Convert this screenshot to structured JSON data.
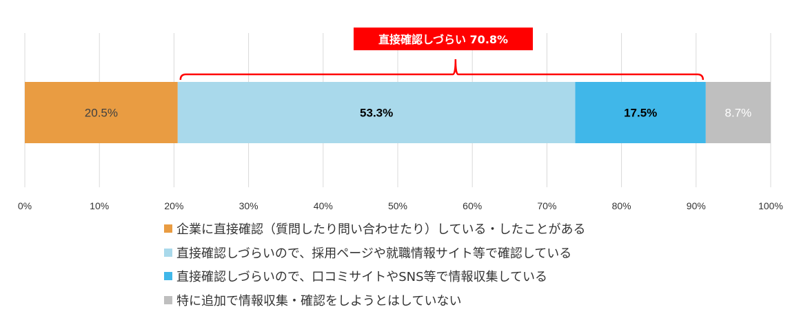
{
  "chart_data": {
    "type": "bar",
    "orientation": "horizontal",
    "stacked": true,
    "xlim": [
      0,
      100
    ],
    "x_ticks": [
      "0%",
      "10%",
      "20%",
      "30%",
      "40%",
      "50%",
      "60%",
      "70%",
      "80%",
      "90%",
      "100%"
    ],
    "grid": true,
    "legend_placement": "bottom",
    "series": [
      {
        "name": "企業に直接確認（質問したり問い合わせたり）している・したことがある",
        "value": 20.5,
        "label": "20.5%",
        "color": "#E99C42",
        "label_color": "#404040",
        "label_bold": false
      },
      {
        "name": "直接確認しづらいので、採用ページや就職情報サイト等で確認している",
        "value": 53.3,
        "label": "53.3%",
        "color": "#A9D9EB",
        "label_color": "#000000",
        "label_bold": true
      },
      {
        "name": "直接確認しづらいので、口コミサイトやSNS等で情報収集している",
        "value": 17.5,
        "label": "17.5%",
        "color": "#40B7E9",
        "label_color": "#000000",
        "label_bold": true
      },
      {
        "name": "特に追加で情報収集・確認をしようとはしていない",
        "value": 8.7,
        "label": "8.7%",
        "color": "#BFBFBF",
        "label_color": "#FFFFFF",
        "label_bold": false
      }
    ],
    "annotation": {
      "text": "直接確認しづらい 70.8%",
      "spans_series": [
        1,
        2
      ],
      "color": "#FF0000"
    }
  }
}
